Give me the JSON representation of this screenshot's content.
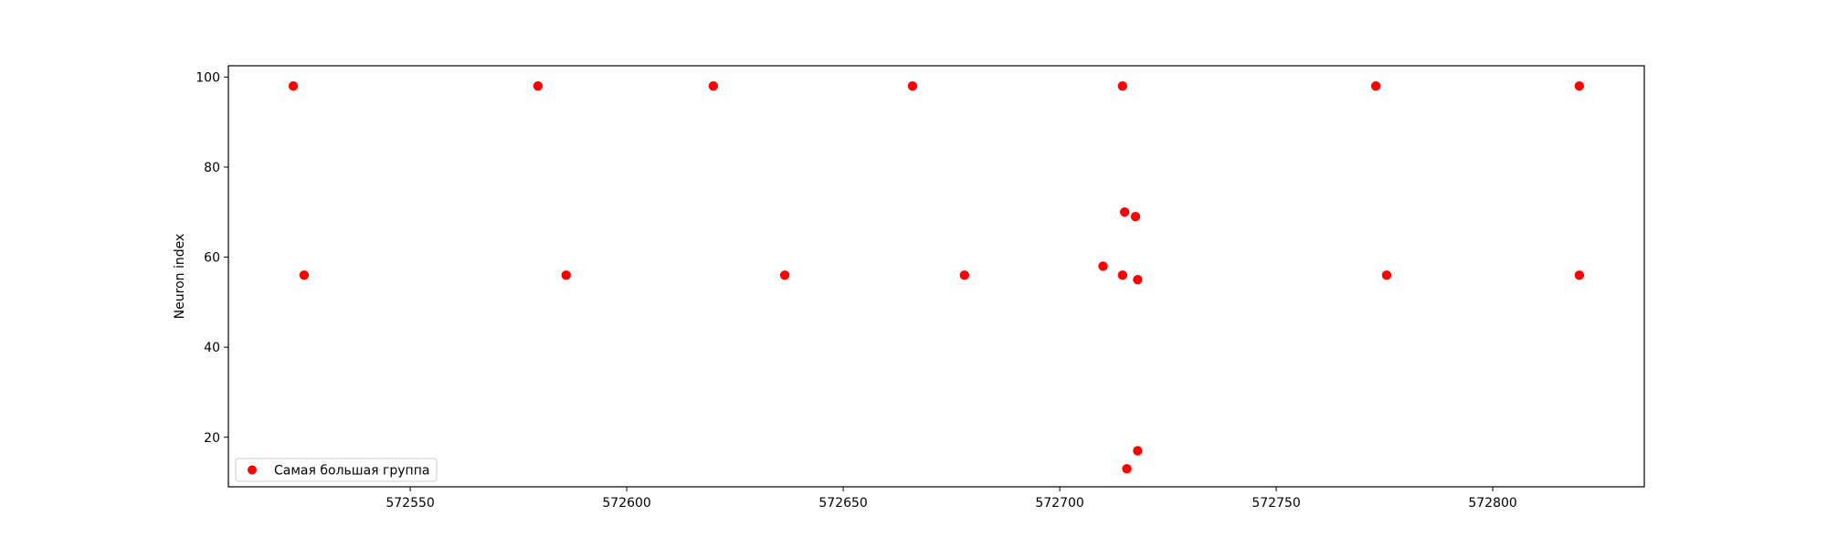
{
  "chart_data": {
    "type": "scatter",
    "title": "",
    "xlabel": "",
    "ylabel": "Neuron index",
    "xlim": [
      572508,
      572835
    ],
    "ylim": [
      9,
      102.5
    ],
    "xticks": [
      572550,
      572600,
      572650,
      572700,
      572750,
      572800
    ],
    "yticks": [
      20,
      40,
      60,
      80,
      100
    ],
    "grid": false,
    "legend_position": "lower-left",
    "series": [
      {
        "name": "Самая большая группа",
        "color": "#ff0000",
        "points": [
          [
            572523,
            98
          ],
          [
            572579.5,
            98
          ],
          [
            572620,
            98
          ],
          [
            572666,
            98
          ],
          [
            572714.5,
            98
          ],
          [
            572773,
            98
          ],
          [
            572820,
            98
          ],
          [
            572525.5,
            56
          ],
          [
            572586,
            56
          ],
          [
            572636.5,
            56
          ],
          [
            572678,
            56
          ],
          [
            572710,
            58
          ],
          [
            572714.5,
            56
          ],
          [
            572718,
            55
          ],
          [
            572775.5,
            56
          ],
          [
            572820,
            56
          ],
          [
            572715,
            70
          ],
          [
            572717.5,
            69
          ],
          [
            572718,
            17
          ],
          [
            572715.5,
            13
          ]
        ]
      }
    ]
  }
}
